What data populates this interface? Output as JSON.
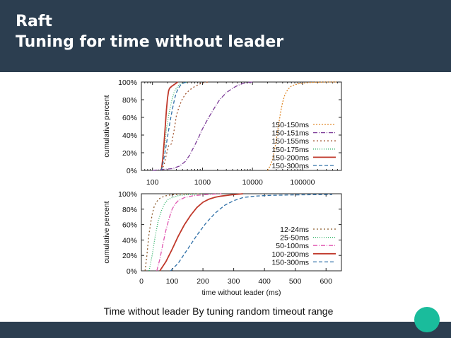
{
  "slide": {
    "title_line1": "Raft",
    "title_line2": "Tuning for time without leader",
    "caption": "Time without leader By tuning random timeout range",
    "header_color": "#2c3e50",
    "accent_color": "#1abc9c"
  },
  "chart_data": [
    {
      "type": "line",
      "title": "",
      "xlabel": "",
      "ylabel": "cumulative percent",
      "xscale": "log",
      "xlim": [
        60,
        600000
      ],
      "ylim": [
        0,
        100
      ],
      "xticks": [
        100,
        1000,
        10000,
        100000
      ],
      "xtick_labels": [
        "100",
        "1000",
        "10000",
        "100000"
      ],
      "yticks": [
        0,
        20,
        40,
        60,
        80,
        100
      ],
      "ytick_labels": [
        "0%",
        "20%",
        "40%",
        "60%",
        "80%",
        "100%"
      ],
      "grid": false,
      "legend_position": "bottom-right",
      "series": [
        {
          "name": "150-150ms",
          "color": "#e08a2c",
          "dash": "2,2",
          "x": [
            20000,
            22000,
            25000,
            28000,
            31000,
            34000,
            37000,
            40000,
            44000,
            50000,
            58000,
            70000,
            90000,
            150000,
            300000,
            500000
          ],
          "y": [
            0,
            4,
            12,
            25,
            40,
            55,
            68,
            77,
            85,
            91,
            95,
            97,
            98.5,
            99.5,
            100,
            100
          ]
        },
        {
          "name": "150-151ms",
          "color": "#7d3c98",
          "dash": "6,2,1,2",
          "x": [
            100,
            150,
            250,
            350,
            450,
            550,
            650,
            800,
            1000,
            1300,
            1700,
            2200,
            3000,
            4000,
            5000,
            6500,
            8000,
            10000
          ],
          "y": [
            0,
            1,
            2,
            5,
            10,
            17,
            25,
            35,
            47,
            59,
            70,
            80,
            88,
            93,
            96,
            98.5,
            99.5,
            100
          ]
        },
        {
          "name": "150-155ms",
          "color": "#a0522d",
          "dash": "2,3",
          "x": [
            150,
            170,
            190,
            210,
            240,
            270,
            300,
            340,
            390,
            450,
            550,
            700,
            900,
            1100,
            1300
          ],
          "y": [
            0,
            6,
            18,
            28,
            30,
            45,
            62,
            72,
            80,
            86,
            91,
            95,
            98,
            99.5,
            100
          ]
        },
        {
          "name": "150-175ms",
          "color": "#27ae60",
          "dash": "1,2",
          "x": [
            150,
            160,
            175,
            190,
            210,
            230,
            250,
            270,
            300,
            340,
            400,
            500
          ],
          "y": [
            0,
            10,
            28,
            47,
            62,
            73,
            82,
            88,
            93,
            97,
            99,
            100
          ]
        },
        {
          "name": "150-200ms",
          "color": "#c0392b",
          "dash": "",
          "x": [
            150,
            160,
            170,
            180,
            190,
            200,
            210,
            220,
            240,
            270,
            320
          ],
          "y": [
            0,
            12,
            30,
            50,
            68,
            82,
            90,
            93,
            95,
            97,
            100
          ]
        },
        {
          "name": "150-300ms",
          "color": "#2e6fa7",
          "dash": "5,3",
          "x": [
            150,
            165,
            180,
            200,
            220,
            240,
            260,
            280,
            300,
            330,
            370,
            420,
            500
          ],
          "y": [
            0,
            10,
            22,
            38,
            52,
            64,
            74,
            82,
            88,
            93,
            97,
            99,
            100
          ]
        }
      ]
    },
    {
      "type": "line",
      "title": "",
      "xlabel": "time without leader (ms)",
      "ylabel": "cumulative percent",
      "xscale": "linear",
      "xlim": [
        0,
        650
      ],
      "ylim": [
        0,
        100
      ],
      "xticks": [
        0,
        100,
        200,
        300,
        400,
        500,
        600
      ],
      "xtick_labels": [
        "0",
        "100",
        "200",
        "300",
        "400",
        "500",
        "600"
      ],
      "yticks": [
        0,
        20,
        40,
        60,
        80,
        100
      ],
      "ytick_labels": [
        "0%",
        "20%",
        "40%",
        "60%",
        "80%",
        "100%"
      ],
      "grid": false,
      "legend_position": "bottom-right",
      "series": [
        {
          "name": "12-24ms",
          "color": "#8b5a2b",
          "dash": "2,3",
          "x": [
            12,
            18,
            24,
            30,
            36,
            42,
            50,
            60,
            75,
            95,
            130,
            200
          ],
          "y": [
            0,
            20,
            45,
            62,
            75,
            84,
            90,
            94,
            97,
            98.5,
            99.5,
            100
          ]
        },
        {
          "name": "25-50ms",
          "color": "#27ae60",
          "dash": "1,2",
          "x": [
            25,
            35,
            45,
            55,
            65,
            75,
            85,
            100,
            120,
            150,
            200
          ],
          "y": [
            0,
            20,
            45,
            65,
            78,
            87,
            92,
            95,
            97.5,
            99,
            100
          ]
        },
        {
          "name": "50-100ms",
          "color": "#e056b0",
          "dash": "6,2,1,2",
          "x": [
            50,
            60,
            70,
            80,
            90,
            100,
            110,
            120,
            140,
            170,
            210,
            260
          ],
          "y": [
            0,
            15,
            35,
            53,
            68,
            80,
            87,
            91,
            95,
            97.5,
            99,
            100
          ]
        },
        {
          "name": "100-200ms",
          "color": "#c0392b",
          "dash": "",
          "x": [
            60,
            80,
            100,
            120,
            140,
            160,
            180,
            200,
            220,
            240,
            260,
            290,
            330
          ],
          "y": [
            0,
            12,
            28,
            45,
            60,
            72,
            82,
            89,
            93,
            95.5,
            97,
            98.5,
            100
          ]
        },
        {
          "name": "150-300ms",
          "color": "#2e6fa7",
          "dash": "5,3",
          "x": [
            95,
            120,
            150,
            180,
            210,
            240,
            270,
            300,
            330,
            370,
            420,
            500,
            620
          ],
          "y": [
            0,
            10,
            28,
            46,
            62,
            75,
            85,
            91,
            95,
            97,
            98,
            98.5,
            99
          ]
        }
      ]
    }
  ]
}
